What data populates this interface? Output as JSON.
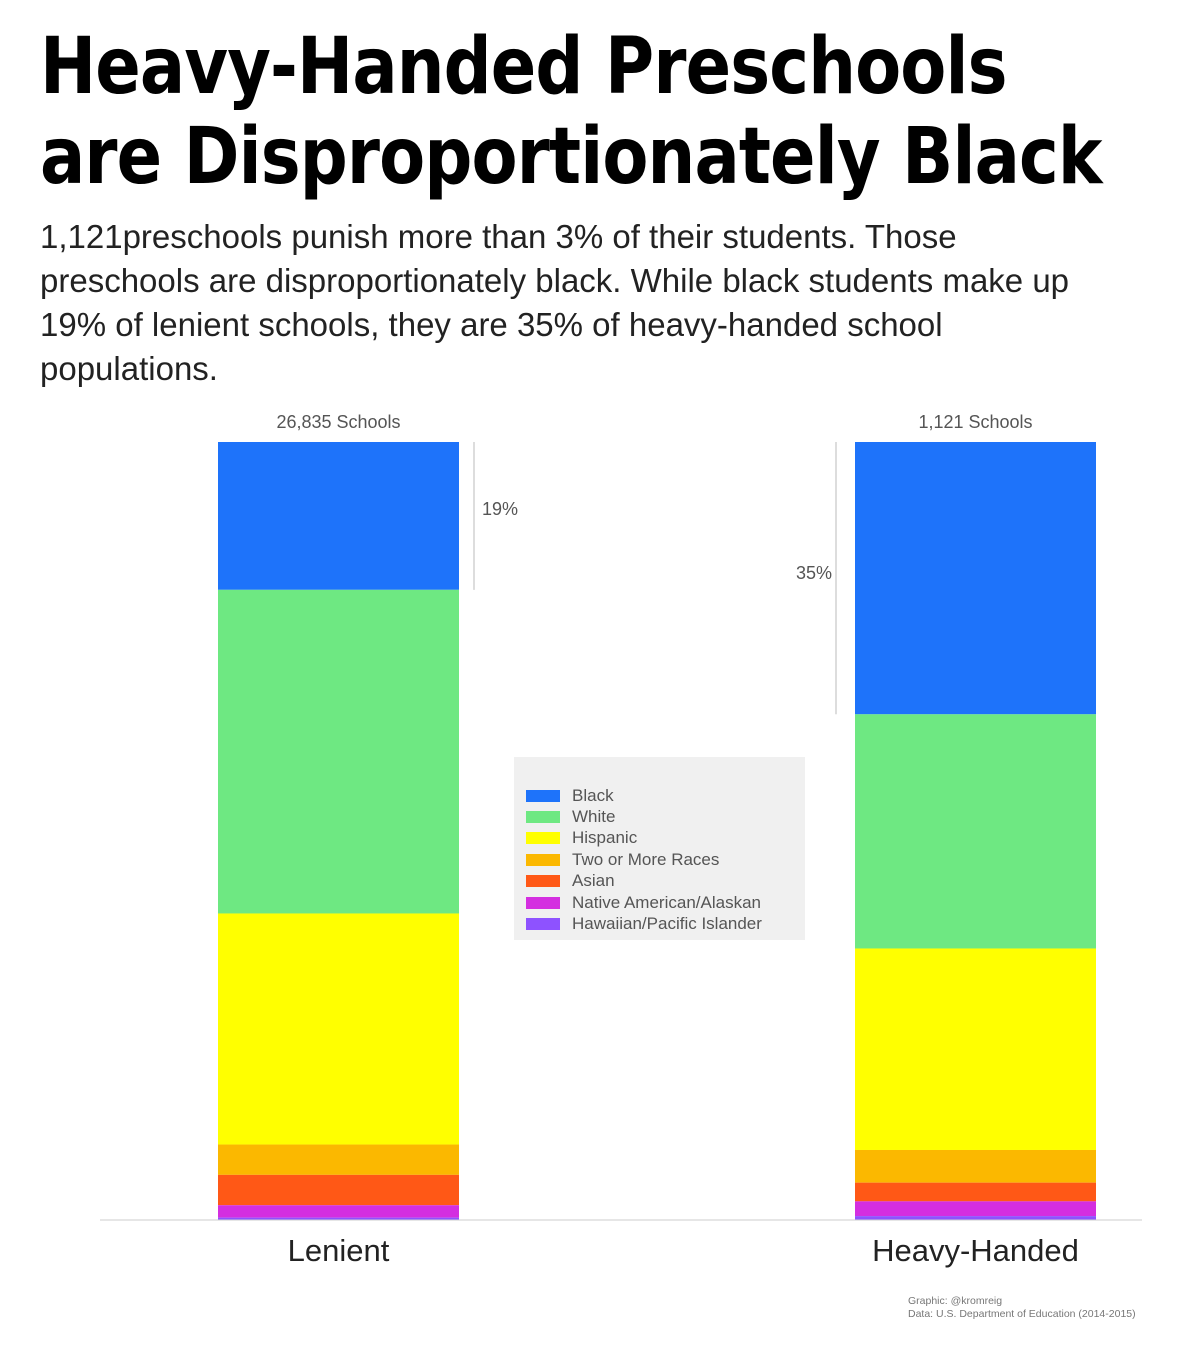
{
  "title_line1": "Heavy-Handed Preschools",
  "title_line2": "are Disproportionately Black",
  "subtitle": "1,121preschools punish more than 3% of their students. Those preschools are disproportionately black. While black students make up 19% of lenient schools, they are 35% of heavy-handed school populations.",
  "credits": {
    "graphic": "Graphic: @kromreig",
    "data": "Data: U.S. Department of Education (2014-2015)"
  },
  "chart_data": {
    "type": "bar",
    "stacked": true,
    "normalized_percent": true,
    "categories": [
      "Lenient",
      "Heavy-Handed"
    ],
    "category_notes": [
      "26,835 Schools",
      "1,121 Schools"
    ],
    "series": [
      {
        "name": "Black",
        "color": "#1e73fa",
        "values": [
          19,
          35
        ]
      },
      {
        "name": "White",
        "color": "#6ee882",
        "values": [
          41.6,
          30.1
        ]
      },
      {
        "name": "Hispanic",
        "color": "#ffff00",
        "values": [
          29.7,
          25.9
        ]
      },
      {
        "name": "Two or More Races",
        "color": "#fbb800",
        "values": [
          3.9,
          4.2
        ]
      },
      {
        "name": "Asian",
        "color": "#ff5816",
        "values": [
          3.9,
          2.4
        ]
      },
      {
        "name": "Native American/Alaskan",
        "color": "#d42ee0",
        "values": [
          1.6,
          1.9
        ]
      },
      {
        "name": "Hawaiian/Pacific Islander",
        "color": "#8e52ff",
        "values": [
          0.3,
          0.5
        ]
      }
    ],
    "annotations": [
      {
        "category": "Lenient",
        "series": "Black",
        "text": "19%"
      },
      {
        "category": "Heavy-Handed",
        "series": "Black",
        "text": "35%"
      }
    ],
    "ylim": [
      0,
      100
    ],
    "grid": false,
    "legend_position": "center"
  }
}
